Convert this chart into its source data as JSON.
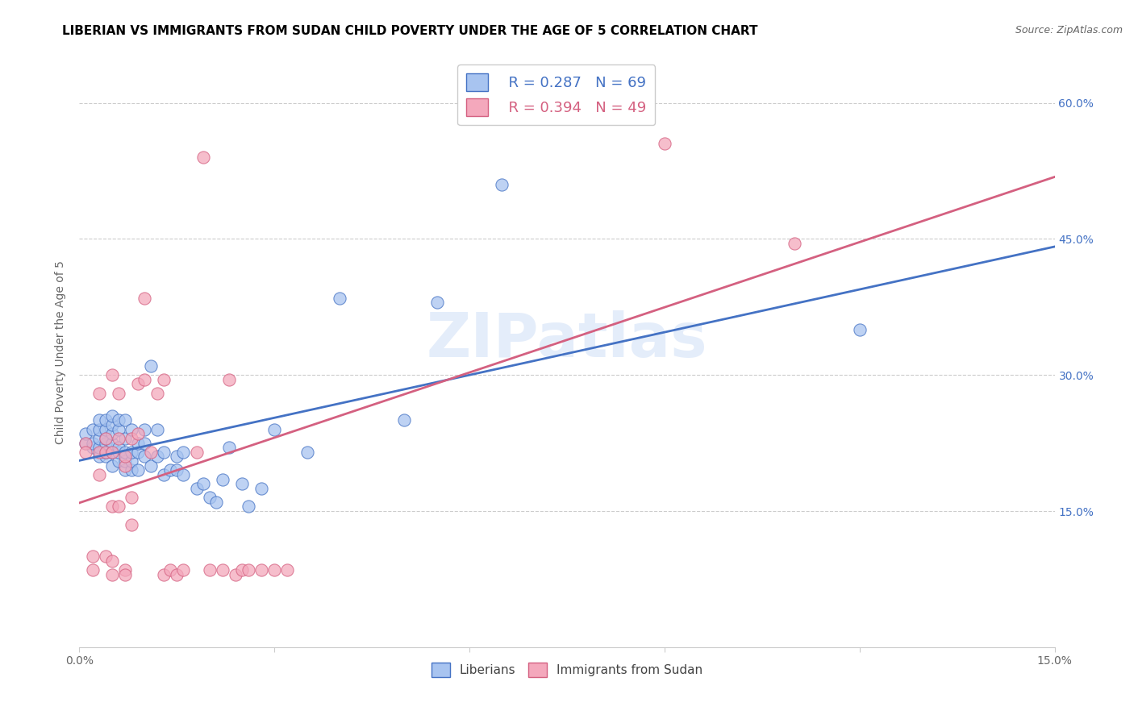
{
  "title": "LIBERIAN VS IMMIGRANTS FROM SUDAN CHILD POVERTY UNDER THE AGE OF 5 CORRELATION CHART",
  "source": "Source: ZipAtlas.com",
  "ylabel": "Child Poverty Under the Age of 5",
  "xlim": [
    0.0,
    0.15
  ],
  "ylim": [
    0.0,
    0.65
  ],
  "watermark": "ZIPatlas",
  "legend_R1": "R = 0.287",
  "legend_N1": "N = 69",
  "legend_R2": "R = 0.394",
  "legend_N2": "N = 49",
  "color_liberian": "#a8c4f0",
  "color_sudan": "#f4a8bc",
  "color_line_liberian": "#4472c4",
  "color_line_sudan": "#d46080",
  "title_fontsize": 11,
  "label_fontsize": 10,
  "tick_fontsize": 10,
  "liberian_x": [
    0.001,
    0.001,
    0.002,
    0.002,
    0.002,
    0.003,
    0.003,
    0.003,
    0.003,
    0.003,
    0.004,
    0.004,
    0.004,
    0.004,
    0.004,
    0.004,
    0.005,
    0.005,
    0.005,
    0.005,
    0.005,
    0.005,
    0.006,
    0.006,
    0.006,
    0.006,
    0.006,
    0.007,
    0.007,
    0.007,
    0.007,
    0.007,
    0.008,
    0.008,
    0.008,
    0.008,
    0.009,
    0.009,
    0.009,
    0.01,
    0.01,
    0.01,
    0.011,
    0.011,
    0.012,
    0.012,
    0.013,
    0.013,
    0.014,
    0.015,
    0.015,
    0.016,
    0.016,
    0.018,
    0.019,
    0.02,
    0.021,
    0.022,
    0.023,
    0.025,
    0.026,
    0.028,
    0.03,
    0.035,
    0.04,
    0.05,
    0.055,
    0.065,
    0.12
  ],
  "liberian_y": [
    0.225,
    0.235,
    0.22,
    0.225,
    0.24,
    0.21,
    0.22,
    0.23,
    0.24,
    0.25,
    0.21,
    0.215,
    0.225,
    0.23,
    0.24,
    0.25,
    0.2,
    0.215,
    0.225,
    0.235,
    0.245,
    0.255,
    0.205,
    0.215,
    0.22,
    0.24,
    0.25,
    0.195,
    0.205,
    0.215,
    0.23,
    0.25,
    0.195,
    0.205,
    0.215,
    0.24,
    0.195,
    0.215,
    0.225,
    0.21,
    0.225,
    0.24,
    0.2,
    0.31,
    0.21,
    0.24,
    0.19,
    0.215,
    0.195,
    0.195,
    0.21,
    0.19,
    0.215,
    0.175,
    0.18,
    0.165,
    0.16,
    0.185,
    0.22,
    0.18,
    0.155,
    0.175,
    0.24,
    0.215,
    0.385,
    0.25,
    0.38,
    0.51,
    0.35
  ],
  "sudan_x": [
    0.001,
    0.001,
    0.002,
    0.002,
    0.003,
    0.003,
    0.003,
    0.004,
    0.004,
    0.004,
    0.005,
    0.005,
    0.005,
    0.005,
    0.005,
    0.006,
    0.006,
    0.006,
    0.007,
    0.007,
    0.007,
    0.007,
    0.008,
    0.008,
    0.008,
    0.009,
    0.009,
    0.01,
    0.01,
    0.011,
    0.012,
    0.013,
    0.013,
    0.014,
    0.015,
    0.016,
    0.018,
    0.019,
    0.02,
    0.022,
    0.023,
    0.024,
    0.025,
    0.026,
    0.028,
    0.03,
    0.032,
    0.09,
    0.11
  ],
  "sudan_y": [
    0.225,
    0.215,
    0.1,
    0.085,
    0.19,
    0.28,
    0.215,
    0.215,
    0.23,
    0.1,
    0.095,
    0.215,
    0.3,
    0.155,
    0.08,
    0.23,
    0.28,
    0.155,
    0.085,
    0.2,
    0.21,
    0.08,
    0.135,
    0.165,
    0.23,
    0.235,
    0.29,
    0.295,
    0.385,
    0.215,
    0.28,
    0.295,
    0.08,
    0.085,
    0.08,
    0.085,
    0.215,
    0.54,
    0.085,
    0.085,
    0.295,
    0.08,
    0.085,
    0.085,
    0.085,
    0.085,
    0.085,
    0.555,
    0.445
  ]
}
